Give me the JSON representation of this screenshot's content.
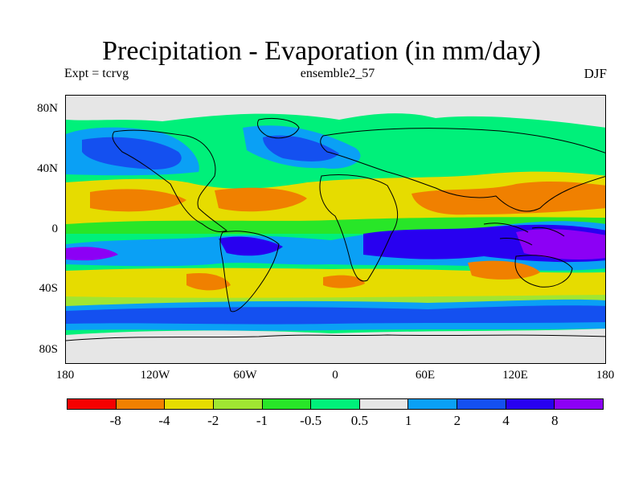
{
  "title": "Precipitation - Evaporation (in mm/day)",
  "subtitle_left": "Expt = tcrvg",
  "subtitle_center": "ensemble2_57",
  "subtitle_right": "DJF",
  "y_axis_labels": [
    "80N",
    "40N",
    "0",
    "40S",
    "80S"
  ],
  "x_axis_labels": [
    "180",
    "120W",
    "60W",
    "0",
    "60E",
    "120E",
    "180"
  ],
  "colorbar": {
    "colors": [
      "#f50000",
      "#f08000",
      "#e6dc00",
      "#a0e632",
      "#28e628",
      "#00f07a",
      "#e6e6e6",
      "#0aa0f5",
      "#1450f0",
      "#2800f0",
      "#8c00f5"
    ],
    "labels": [
      "-8",
      "-4",
      "-2",
      "-1",
      "-0.5",
      "0.5",
      "1",
      "2",
      "4",
      "8"
    ]
  },
  "palette": {
    "ocean_base": "#00f07a",
    "orange": "#f08000",
    "yellow": "#e6dc00",
    "lightgreen": "#a0e632",
    "green": "#28e628",
    "gray": "#e6e6e6",
    "lightblue": "#0aa0f5",
    "blue": "#1450f0",
    "darkblue": "#2800f0",
    "purple": "#8c00f5"
  }
}
